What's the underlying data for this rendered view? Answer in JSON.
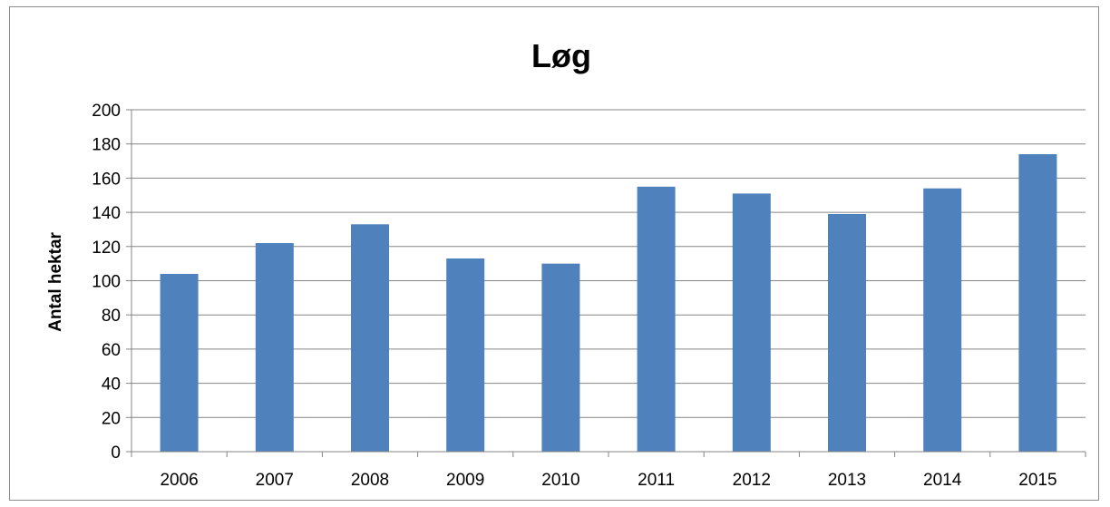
{
  "chart_data": {
    "type": "bar",
    "title": "Løg",
    "xlabel": "",
    "ylabel": "Antal hektar",
    "categories": [
      "2006",
      "2007",
      "2008",
      "2009",
      "2010",
      "2011",
      "2012",
      "2013",
      "2014",
      "2015"
    ],
    "values": [
      104,
      122,
      133,
      113,
      110,
      155,
      151,
      139,
      154,
      174
    ],
    "ylim": [
      0,
      200
    ],
    "yticks": [
      0,
      20,
      40,
      60,
      80,
      100,
      120,
      140,
      160,
      180,
      200
    ],
    "grid": true,
    "legend": "none",
    "colors": {
      "bar": "#4f81bd",
      "grid": "#868686",
      "axis": "#868686",
      "frame": "#8c8c8c"
    }
  }
}
